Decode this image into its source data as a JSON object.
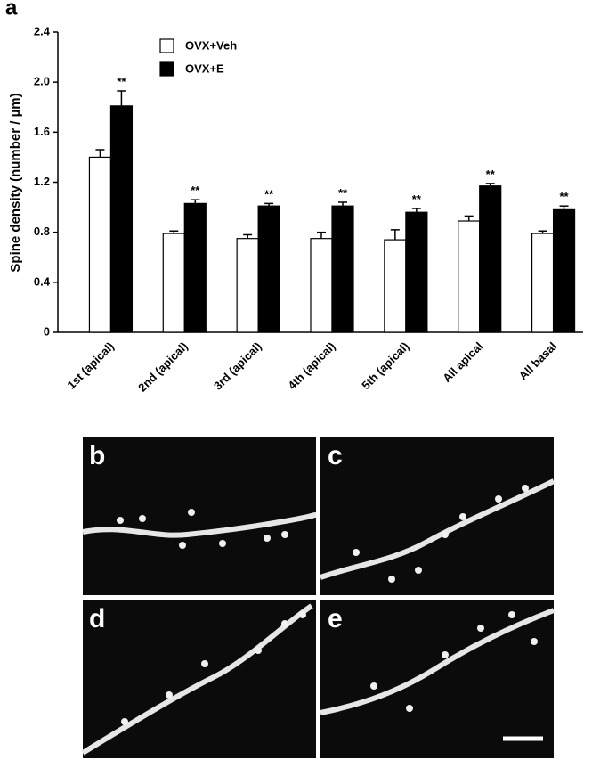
{
  "chart_data": {
    "type": "bar",
    "panel_label": "a",
    "ylabel": "Spine density (number / µm)",
    "categories": [
      "1st (apical)",
      "2nd (apical)",
      "3rd (apical)",
      "4th (apical)",
      "5th (apical)",
      "All apical",
      "All basal"
    ],
    "series": [
      {
        "name": "OVX+Veh",
        "color": "#ffffff",
        "values": [
          1.4,
          0.79,
          0.75,
          0.75,
          0.74,
          0.89,
          0.79
        ],
        "errors": [
          0.06,
          0.02,
          0.03,
          0.05,
          0.08,
          0.04,
          0.02
        ]
      },
      {
        "name": "OVX+E",
        "color": "#000000",
        "values": [
          1.81,
          1.03,
          1.01,
          1.01,
          0.96,
          1.17,
          0.98
        ],
        "errors": [
          0.12,
          0.03,
          0.02,
          0.03,
          0.03,
          0.02,
          0.03
        ],
        "annotations": [
          "**",
          "**",
          "**",
          "**",
          "**",
          "**",
          "**"
        ]
      }
    ],
    "ylim": [
      0,
      2.4
    ],
    "yticks": [
      0,
      0.4,
      0.8,
      1.2,
      1.6,
      {
        "value": 2,
        "label": "2.0"
      },
      2.4
    ],
    "legend": "upper left"
  },
  "panels": [
    {
      "label": "b"
    },
    {
      "label": "c"
    },
    {
      "label": "d"
    },
    {
      "label": "e"
    }
  ]
}
